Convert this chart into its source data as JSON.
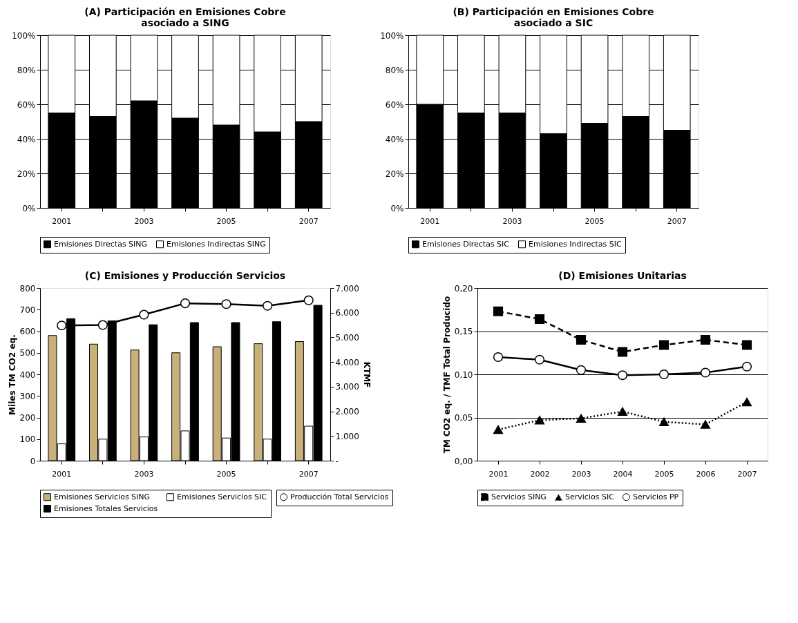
{
  "chart_data": [
    {
      "type": "bar",
      "stacked": true,
      "title": "(A) Participación en Emisiones Cobre asociado a SING",
      "categories": [
        "2001",
        null,
        "2003",
        null,
        "2005",
        null,
        "2007"
      ],
      "series": [
        {
          "name": "Emisiones Directas SING",
          "color": "#000000",
          "values": [
            55,
            53,
            62,
            52,
            48,
            44,
            50
          ]
        },
        {
          "name": "Emisiones Indirectas SING",
          "color": "#ffffff",
          "values": [
            45,
            47,
            38,
            48,
            52,
            56,
            50
          ]
        }
      ],
      "ylim": [
        0,
        100
      ],
      "yticks": [
        {
          "value": 0,
          "label": "0%"
        },
        {
          "value": 20,
          "label": "20%"
        },
        {
          "value": 40,
          "label": "40%"
        },
        {
          "value": 60,
          "label": "60%"
        },
        {
          "value": 80,
          "label": "80%"
        },
        {
          "value": 100,
          "label": "100%"
        }
      ],
      "grid": "y",
      "legend": "bottom"
    },
    {
      "type": "bar",
      "stacked": true,
      "title": "(B) Participación en Emisiones Cobre asociado a SIC",
      "categories": [
        "2001",
        null,
        "2003",
        null,
        "2005",
        null,
        "2007"
      ],
      "series": [
        {
          "name": "Emisiones Directas SIC",
          "color": "#000000",
          "values": [
            60,
            55,
            55,
            43,
            49,
            53,
            45
          ]
        },
        {
          "name": "Emisiones Indirectas SIC",
          "color": "#ffffff",
          "values": [
            40,
            45,
            45,
            57,
            51,
            47,
            55
          ]
        }
      ],
      "ylim": [
        0,
        100
      ],
      "yticks": [
        {
          "value": 0,
          "label": "0%"
        },
        {
          "value": 20,
          "label": "20%"
        },
        {
          "value": 40,
          "label": "40%"
        },
        {
          "value": 60,
          "label": "60%"
        },
        {
          "value": 80,
          "label": "80%"
        },
        {
          "value": 100,
          "label": "100%"
        }
      ],
      "grid": "y",
      "legend": "bottom"
    },
    {
      "type": "bar",
      "title": "(C) Emisiones y Producción Servicios",
      "ylabel": "Miles TM CO2 eq.",
      "y2label": "KTMF",
      "categories": [
        "2001",
        null,
        "2003",
        null,
        "2005",
        null,
        "2007"
      ],
      "series": [
        {
          "name": "Emisiones Servicios SING",
          "color": "#c8b07a",
          "values": [
            580,
            540,
            513,
            500,
            528,
            542,
            552
          ]
        },
        {
          "name": "Emisiones Servicios SIC",
          "color": "#ffffff",
          "values": [
            78,
            100,
            110,
            138,
            105,
            100,
            160
          ]
        },
        {
          "name": "Emisiones Totales Servicios",
          "color": "#000000",
          "values": [
            658,
            648,
            630,
            640,
            640,
            644,
            720
          ]
        },
        {
          "name": "Producción Total Servicios",
          "color": "#000000",
          "type": "line",
          "axis": "y2",
          "marker": "circle",
          "values": [
            5480,
            5500,
            5920,
            6380,
            6350,
            6280,
            6500
          ]
        }
      ],
      "ylim": [
        0,
        800
      ],
      "yticks": [
        0,
        100,
        200,
        300,
        400,
        500,
        600,
        700,
        800
      ],
      "y2lim": [
        0,
        7000
      ],
      "y2ticks": [
        {
          "value": 0,
          "label": "-"
        },
        {
          "value": 1000,
          "label": "1.000"
        },
        {
          "value": 2000,
          "label": "2.000"
        },
        {
          "value": 3000,
          "label": "3.000"
        },
        {
          "value": 4000,
          "label": "4.000"
        },
        {
          "value": 5000,
          "label": "5.000"
        },
        {
          "value": 6000,
          "label": "6.000"
        },
        {
          "value": 7000,
          "label": "7.000"
        }
      ],
      "legend": "bottom"
    },
    {
      "type": "line",
      "title": "(D) Emisiones Unitarias",
      "ylabel": "TM CO2 eq. / TMF Total Producido",
      "categories": [
        "2001",
        "2002",
        "2003",
        "2004",
        "2005",
        "2006",
        "2007"
      ],
      "series": [
        {
          "name": "Servicios SING",
          "color": "#000000",
          "marker": "square",
          "line_style": "dashed",
          "values": [
            0.173,
            0.164,
            0.14,
            0.126,
            0.134,
            0.14,
            0.134
          ]
        },
        {
          "name": "Servicios SIC",
          "color": "#000000",
          "marker": "triangle",
          "line_style": "dotted",
          "values": [
            0.036,
            0.047,
            0.049,
            0.057,
            0.045,
            0.042,
            0.068
          ]
        },
        {
          "name": "Servicios PP",
          "color": "#000000",
          "marker": "circle",
          "line_style": "solid",
          "values": [
            0.12,
            0.117,
            0.105,
            0.099,
            0.1,
            0.102,
            0.109
          ]
        }
      ],
      "ylim": [
        0,
        0.2
      ],
      "yticks": [
        {
          "value": 0,
          "label": "0,00"
        },
        {
          "value": 0.05,
          "label": "0,05"
        },
        {
          "value": 0.1,
          "label": "0,10"
        },
        {
          "value": 0.15,
          "label": "0,15"
        },
        {
          "value": 0.2,
          "label": "0,20"
        }
      ],
      "grid": "y",
      "legend": "bottom"
    }
  ]
}
